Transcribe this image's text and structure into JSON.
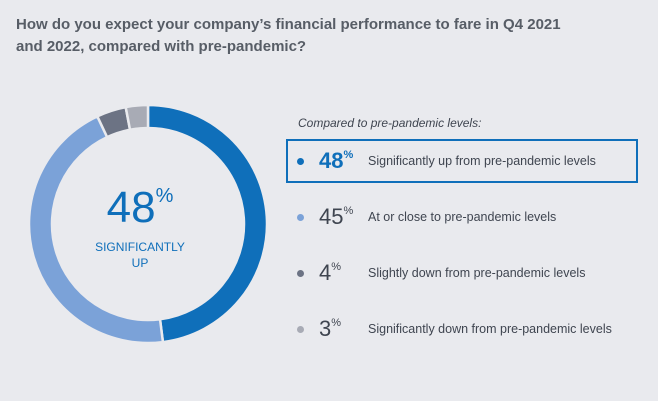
{
  "title": "How do you expect your company’s financial performance to fare in Q4 2021 and 2022, compared with pre-pandemic?",
  "center": {
    "value": "48",
    "sign": "%",
    "line1": "SIGNIFICANTLY",
    "line2": "UP"
  },
  "legend_header": "Compared to pre-pandemic levels:",
  "chart_data": {
    "type": "pie",
    "categories": [
      "Significantly up from pre-pandemic levels",
      "At or close to pre-pandemic levels",
      "Slightly down from pre-pandemic levels",
      "Significantly down from pre-pandemic levels"
    ],
    "values": [
      48,
      45,
      4,
      3
    ],
    "labels": [
      "48",
      "45",
      "4",
      "3"
    ],
    "unit": "%",
    "colors": [
      "#0f6fba",
      "#7ba2d8",
      "#6c7384",
      "#a8abb5"
    ],
    "highlight": 0,
    "title": "How do you expect your company’s financial performance to fare in Q4 2021 and 2022, compared with pre-pandemic?"
  }
}
